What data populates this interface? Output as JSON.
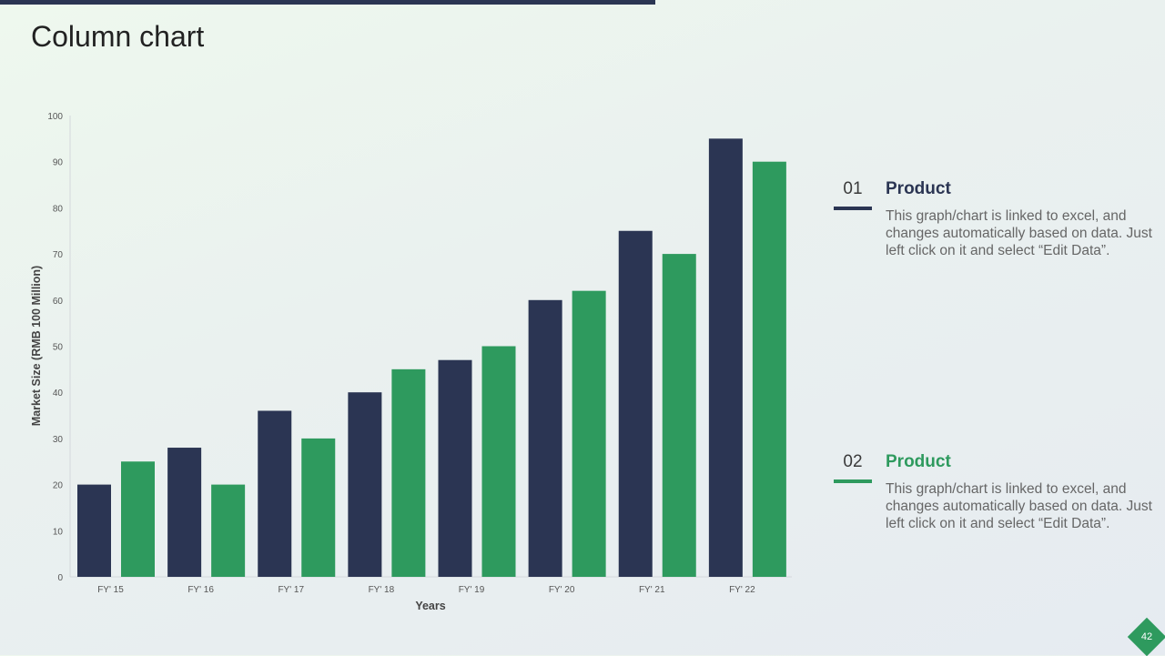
{
  "slide": {
    "title": "Column chart",
    "page_number": "42"
  },
  "legend_items": [
    {
      "number": "01",
      "heading": "Product",
      "color": "#2b3553",
      "text": "This graph/chart is linked to excel, and changes automatically based on data. Just left click on it and select “Edit Data”."
    },
    {
      "number": "02",
      "heading": "Product",
      "color": "#2e9a5e",
      "text": "This graph/chart is linked to excel, and changes automatically based on data. Just left click on it and select “Edit Data”."
    }
  ],
  "chart_data": {
    "type": "bar",
    "categories": [
      "FY' 15",
      "FY' 16",
      "FY' 17",
      "FY' 18",
      "FY' 19",
      "FY' 20",
      "FY' 21",
      "FY' 22"
    ],
    "series": [
      {
        "values": [
          20,
          28,
          36,
          40,
          47,
          60,
          75,
          95
        ],
        "color": "#2b3553"
      },
      {
        "values": [
          25,
          20,
          30,
          45,
          50,
          62,
          70,
          90
        ],
        "color": "#2e9a5e"
      }
    ],
    "xlabel": "Years",
    "ylabel": "Market Size (RMB 100 Million)",
    "ylim": [
      0,
      100
    ],
    "yticks": [
      0,
      10,
      20,
      30,
      40,
      50,
      60,
      70,
      80,
      90,
      100
    ],
    "grid": false,
    "legend": "none"
  }
}
